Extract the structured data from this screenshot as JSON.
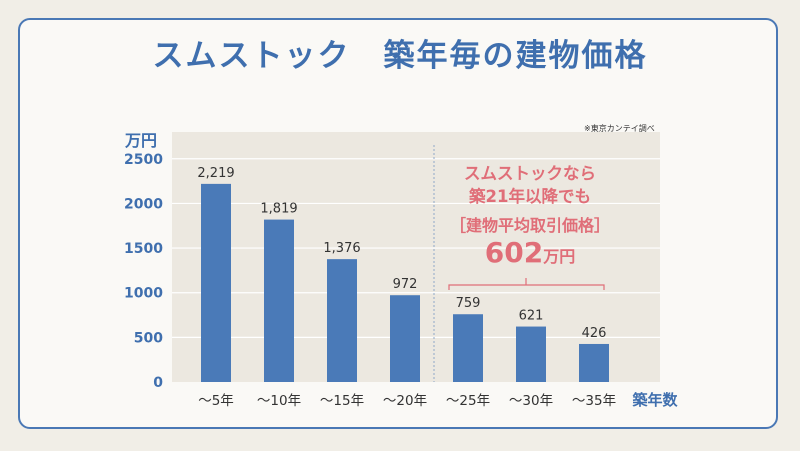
{
  "title": "スムストック　築年毎の建物価格",
  "source_note": "※東京カンテイ調べ",
  "callout": {
    "line1": "スムストックなら",
    "line2": "築21年以降でも",
    "line3": "［建物平均取引価格］",
    "value": "602",
    "unit": "万円"
  },
  "chart_data": {
    "type": "bar",
    "ylabel": "万円",
    "xlabel": "築年数",
    "categories": [
      "～5年",
      "～10年",
      "～15年",
      "～20年",
      "～25年",
      "～30年",
      "～35年"
    ],
    "values": [
      2219,
      1819,
      1376,
      972,
      759,
      621,
      426
    ],
    "value_labels": [
      "2,219",
      "1,819",
      "1,376",
      "972",
      "759",
      "621",
      "426"
    ],
    "yticks": [
      0,
      500,
      1000,
      1500,
      2000,
      2500
    ],
    "ylim": [
      0,
      2800
    ],
    "grid": true,
    "colors": {
      "bar": "#4a7ab8",
      "plot_bg": "#ece8e0",
      "callout": "#e06e78",
      "accent": "#3f6fae"
    }
  }
}
